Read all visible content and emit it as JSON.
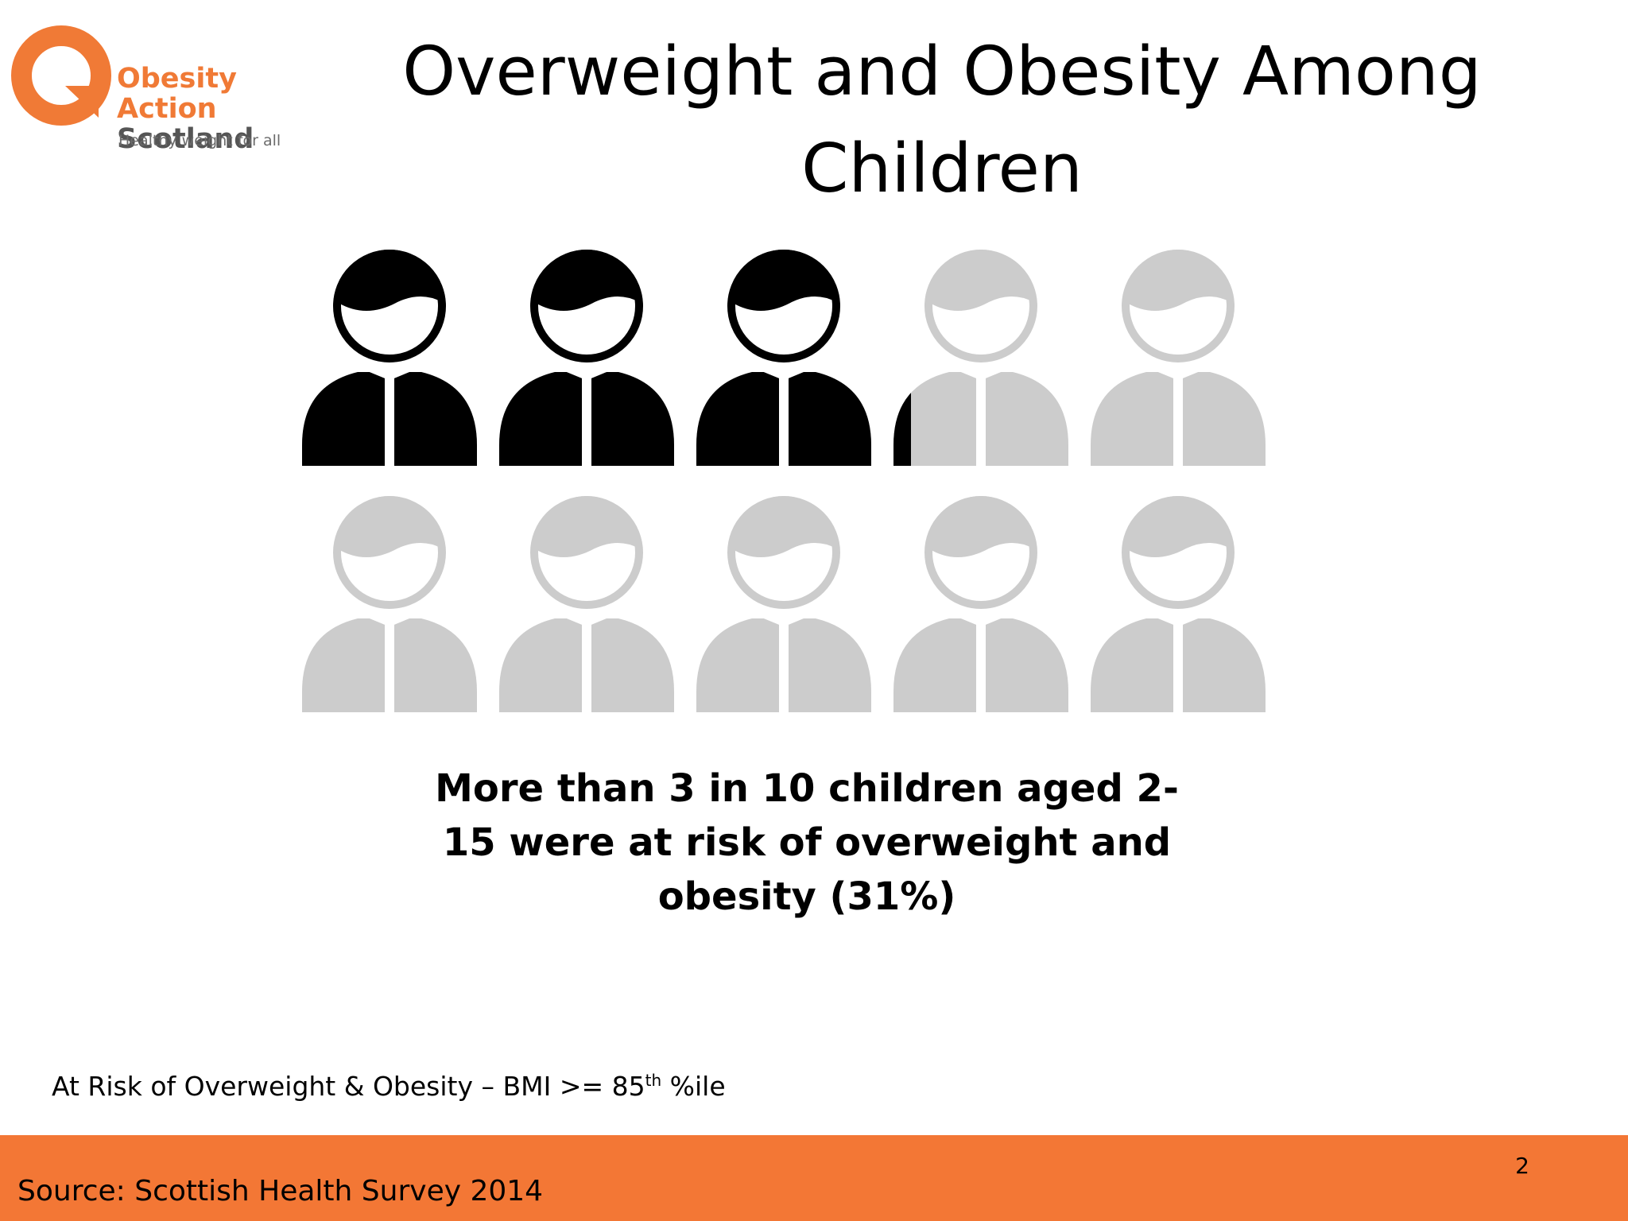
{
  "logo": {
    "name_line1": "Obesity Action",
    "name_line2": "Scotland",
    "tagline": "Healthy weight for all",
    "orange": "#f07a36",
    "grey": "#555555"
  },
  "title": "Overweight and Obesity Among Children",
  "stat_text": "More than 3 in 10 children aged 2-15 were at risk of overweight and obesity (31%)",
  "note": {
    "text": "At Risk of Overweight & Obesity – BMI >= 85",
    "sup": "th",
    "suffix": " %ile"
  },
  "footer": {
    "page_number": "2",
    "source": "Source: Scottish Health Survey 2014",
    "color": "#f37735"
  },
  "chart_data": {
    "type": "pictogram",
    "total_icons": 10,
    "columns": 5,
    "rows": 2,
    "filled_value": 3.1,
    "percent": 31,
    "filled_color": "#000000",
    "empty_color": "#cccccc",
    "icon": "child-icon"
  }
}
